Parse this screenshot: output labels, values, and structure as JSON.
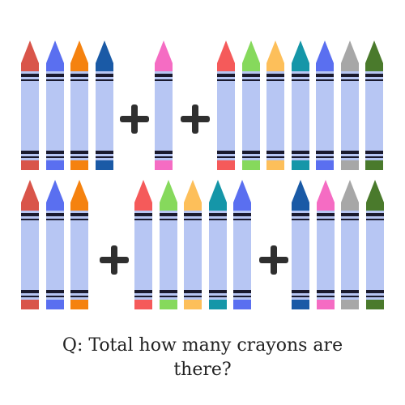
{
  "question": "Q: Total how many crayons are there?",
  "operator_symbol": "+",
  "body_color": "#b7c6f3",
  "band_color": "#1a1a2e",
  "groups": [
    {
      "row": 1,
      "colors": [
        "#d9554a",
        "#5a6ff0",
        "#f5820f",
        "#1a5aa6"
      ]
    },
    {
      "row": 1,
      "colors": [
        "#f56cc3"
      ]
    },
    {
      "row": 1,
      "colors": [
        "#f55a5a",
        "#86d95c",
        "#fdbf5a",
        "#1596a8",
        "#5a6ff0",
        "#a7a7a7",
        "#4a7a2c"
      ]
    },
    {
      "row": 2,
      "colors": [
        "#d9554a",
        "#5a6ff0",
        "#f5820f"
      ]
    },
    {
      "row": 2,
      "colors": [
        "#f55a5a",
        "#86d95c",
        "#fdbf5a",
        "#1596a8",
        "#5a6ff0"
      ]
    },
    {
      "row": 2,
      "colors": [
        "#1a5aa6",
        "#f56cc3",
        "#a7a7a7",
        "#4a7a2c"
      ]
    }
  ]
}
